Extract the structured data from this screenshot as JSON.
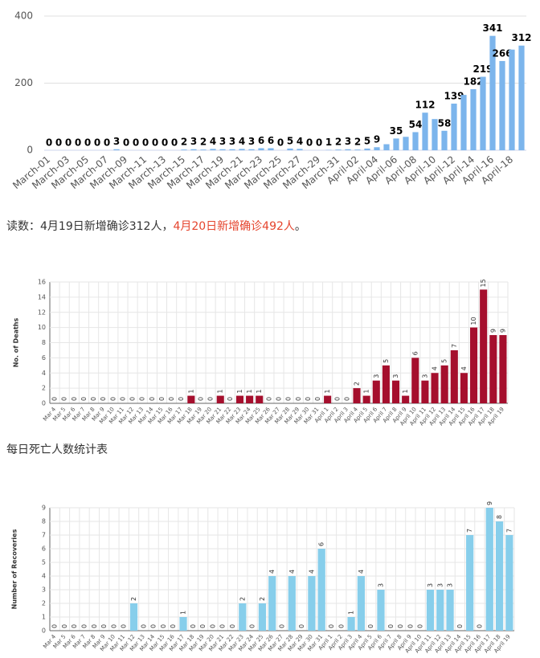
{
  "chart_data": [
    {
      "type": "bar",
      "color": "#7cb5ec",
      "grid": true,
      "categories": [
        "March-01",
        null,
        "March-03",
        null,
        "March-05",
        null,
        "March-07",
        null,
        "March-09",
        null,
        "March-11",
        null,
        "March-13",
        null,
        "March-15",
        null,
        "March-17",
        null,
        "March-19",
        null,
        "March-21",
        null,
        "March-23",
        null,
        "March-25",
        null,
        "March-27",
        null,
        "March-29",
        null,
        "March-31",
        null,
        "April-02",
        null,
        "April-04",
        null,
        "April-06",
        null,
        "April-08",
        null,
        "April-10",
        null,
        "April-12",
        null,
        "April-14",
        null,
        "April-16",
        null,
        "April-18",
        null
      ],
      "values": [
        0,
        0,
        0,
        0,
        0,
        0,
        0,
        3,
        0,
        0,
        0,
        0,
        0,
        0,
        2,
        3,
        2,
        4,
        3,
        3,
        4,
        3,
        6,
        6,
        0,
        5,
        4,
        0,
        0,
        1,
        2,
        3,
        2,
        5,
        9,
        18,
        35,
        40,
        54,
        112,
        93,
        58,
        139,
        165,
        182,
        219,
        341,
        266,
        300,
        312
      ],
      "value_labels": [
        "0",
        "0",
        "0",
        "0",
        "0",
        "0",
        "0",
        "3",
        "0",
        "0",
        "0",
        "0",
        "0",
        "0",
        "2",
        "3",
        "2",
        "4",
        "3",
        "3",
        "4",
        "3",
        "6",
        "6",
        "0",
        "5",
        "4",
        "0",
        "0",
        "1",
        "2",
        "3",
        "2",
        "5",
        "9",
        null,
        "35",
        null,
        "54",
        "112",
        null,
        "58",
        "139",
        null,
        "182",
        "219",
        "341",
        "266",
        null,
        "312"
      ],
      "ylim": [
        0,
        400
      ],
      "yticks": [
        0,
        200,
        400
      ]
    },
    {
      "type": "bar",
      "color": "#a50f2d",
      "grid": true,
      "y_label": "No. of Deaths",
      "categories": [
        "Mar 4",
        "Mar 5",
        "Mar 6",
        "Mar 7",
        "Mar 8",
        "Mar 9",
        "Mar 10",
        "Mar 11",
        "Mar 12",
        "Mar 13",
        "Mar 14",
        "Mar 15",
        "Mar 16",
        "Mar 17",
        "Mar 18",
        "Mar 19",
        "Mar 20",
        "Mar 21",
        "Mar 22",
        "Mar 23",
        "Mar 24",
        "Mar 25",
        "Mar 26",
        "Mar 27",
        "Mar 28",
        "Mar 29",
        "Mar 30",
        "Mar 31",
        "April 1",
        "April 2",
        "April 3",
        "April 4",
        "April 5",
        "April 6",
        "April 7",
        "April 8",
        "April 9",
        "April 10",
        "April 11",
        "April 12",
        "April 13",
        "April 14",
        "April 15",
        "April 16",
        "April 17",
        "April 18",
        "April 19"
      ],
      "values": [
        0,
        0,
        0,
        0,
        0,
        0,
        0,
        0,
        0,
        0,
        0,
        0,
        0,
        0,
        1,
        0,
        0,
        1,
        0,
        1,
        1,
        1,
        0,
        0,
        0,
        0,
        0,
        0,
        1,
        0,
        0,
        2,
        1,
        3,
        5,
        3,
        1,
        6,
        3,
        4,
        5,
        7,
        4,
        10,
        15,
        9,
        9
      ],
      "ylim": [
        0,
        16
      ],
      "yticks": [
        0,
        2,
        4,
        6,
        8,
        10,
        12,
        14,
        16
      ]
    },
    {
      "type": "bar",
      "color": "#87ceeb",
      "grid": true,
      "y_label": "Number of Recoveries",
      "categories": [
        "Mar 4",
        "Mar 5",
        "Mar 6",
        "Mar 7",
        "Mar 8",
        "Mar 9",
        "Mar 10",
        "Mar 11",
        "Mar 12",
        "Mar 13",
        "Mar 14",
        "Mar 15",
        "Mar 16",
        "Mar 17",
        "Mar 18",
        "Mar 19",
        "Mar 20",
        "Mar 21",
        "Mar 22",
        "Mar 23",
        "Mar 24",
        "Mar 25",
        "Mar 26",
        "Mar 27",
        "Mar 28",
        "Mar 29",
        "Mar 30",
        "Mar 31",
        "April 1",
        "April 2",
        "April 3",
        "April 4",
        "April 5",
        "April 6",
        "April 7",
        "April 8",
        "April 9",
        "April 10",
        "April 11",
        "April 12",
        "April 13",
        "April 14",
        "April 15",
        "April 16",
        "April 17",
        "April 18",
        "April 19"
      ],
      "values": [
        0,
        0,
        0,
        0,
        0,
        0,
        0,
        0,
        2,
        0,
        0,
        0,
        0,
        1,
        0,
        0,
        0,
        0,
        0,
        2,
        0,
        2,
        4,
        0,
        4,
        0,
        4,
        6,
        0,
        0,
        1,
        4,
        0,
        3,
        0,
        0,
        0,
        0,
        3,
        3,
        3,
        0,
        7,
        0,
        9,
        8,
        7
      ],
      "ylim": [
        0,
        9
      ],
      "yticks": [
        0,
        1,
        2,
        3,
        4,
        5,
        6,
        7,
        8,
        9
      ]
    }
  ],
  "reading": {
    "prefix": "读数：4月19日新增确诊312人，",
    "highlight": "4月20日新增确诊492人",
    "suffix": "。"
  },
  "caption": "每日死亡人数统计表"
}
